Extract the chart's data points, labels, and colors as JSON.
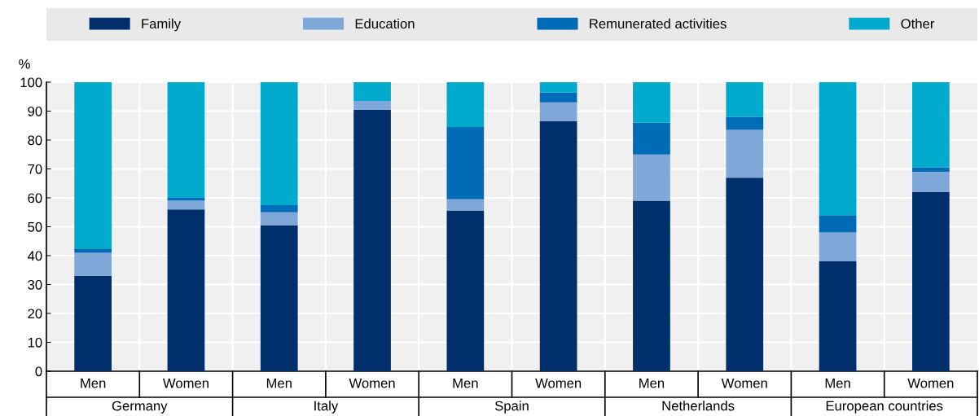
{
  "chart_data": {
    "type": "bar",
    "stacked": true,
    "ylabel": "%",
    "categories": [
      "Men",
      "Women",
      "Men",
      "Women",
      "Men",
      "Women",
      "Men",
      "Women",
      "Men",
      "Women"
    ],
    "annotations": [
      "Germany",
      "Italy",
      "Spain",
      "Netherlands",
      "European countries"
    ],
    "series": [
      {
        "name": "Family",
        "color": "#002f6c",
        "values": [
          33,
          56,
          50.5,
          90.5,
          55.5,
          86.5,
          59,
          67,
          38,
          62
        ]
      },
      {
        "name": "Education",
        "color": "#7fa8d9",
        "values": [
          8,
          3,
          4.5,
          3,
          4,
          6.5,
          16,
          16.5,
          10,
          7
        ]
      },
      {
        "name": "Remunerated activities",
        "color": "#006bb6",
        "values": [
          1.5,
          1,
          2.5,
          0,
          25,
          3.5,
          11,
          4.5,
          6,
          1.5
        ]
      },
      {
        "name": "Other",
        "color": "#00aacc",
        "values": [
          57.5,
          40,
          42.5,
          6.5,
          15.5,
          3.5,
          14,
          12,
          46,
          29.5
        ]
      }
    ],
    "ylim": [
      0,
      100
    ],
    "yticks": [
      0,
      10,
      20,
      30,
      40,
      50,
      60,
      70,
      80,
      90,
      100
    ],
    "grid": true,
    "legend": "top"
  }
}
